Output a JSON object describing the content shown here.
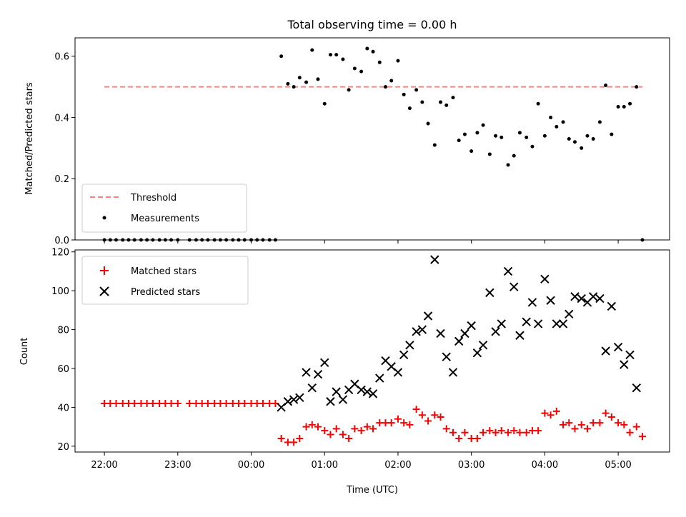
{
  "chart_data": {
    "type": "scatter",
    "title": "Total observing time = 0.00 h",
    "xlabel": "Time (UTC)",
    "x_ticks": [
      "22:00",
      "23:00",
      "00:00",
      "01:00",
      "02:00",
      "03:00",
      "04:00",
      "05:00"
    ],
    "x_tick_hours": [
      22.0,
      23.0,
      24.0,
      25.0,
      26.0,
      27.0,
      28.0,
      29.0
    ],
    "xlim": [
      21.6,
      29.7
    ],
    "time": [
      22.0,
      22.08,
      22.16,
      22.25,
      22.33,
      22.41,
      22.5,
      22.58,
      22.66,
      22.75,
      22.83,
      22.91,
      23.0,
      23.16,
      23.25,
      23.33,
      23.41,
      23.5,
      23.58,
      23.66,
      23.75,
      23.83,
      23.91,
      24.0,
      24.08,
      24.16,
      24.25,
      24.33,
      24.41,
      24.5,
      24.58,
      24.66,
      24.75,
      24.83,
      24.91,
      25.0,
      25.08,
      25.16,
      25.25,
      25.33,
      25.41,
      25.5,
      25.58,
      25.66,
      25.75,
      25.83,
      25.91,
      26.0,
      26.08,
      26.16,
      26.25,
      26.33,
      26.41,
      26.5,
      26.58,
      26.66,
      26.75,
      26.83,
      26.91,
      27.0,
      27.08,
      27.16,
      27.25,
      27.33,
      27.41,
      27.5,
      27.58,
      27.66,
      27.75,
      27.83,
      27.91,
      28.0,
      28.08,
      28.16,
      28.25,
      28.33,
      28.41,
      28.5,
      28.58,
      28.66,
      28.75,
      28.83,
      28.91,
      29.0,
      29.08,
      29.16,
      29.25,
      29.33
    ],
    "panels": [
      {
        "ylabel": "Matched/Predicted stars",
        "ylim": [
          0,
          0.66
        ],
        "y_ticks": [
          "0.0",
          "0.2",
          "0.4",
          "0.6"
        ],
        "y_tick_values": [
          0.0,
          0.2,
          0.4,
          0.6
        ],
        "legend_position": "lower-left",
        "series": [
          {
            "name": "Threshold",
            "style": "dashed-line",
            "color": "#ff7f7f",
            "x_range": [
              22.0,
              29.33
            ],
            "value": 0.5
          },
          {
            "name": "Measurements",
            "style": "dots",
            "color": "#000000",
            "values": [
              0,
              0,
              0,
              0,
              0,
              0,
              0,
              0,
              0,
              0,
              0,
              0,
              0,
              0,
              0,
              0,
              0,
              0,
              0,
              0,
              0,
              0,
              0,
              0,
              0,
              0,
              0,
              0,
              0.6,
              0.51,
              0.5,
              0.53,
              0.515,
              0.62,
              0.525,
              0.445,
              0.605,
              0.605,
              0.59,
              0.49,
              0.56,
              0.55,
              0.625,
              0.615,
              0.58,
              0.5,
              0.52,
              0.585,
              0.475,
              0.43,
              0.49,
              0.45,
              0.38,
              0.31,
              0.45,
              0.44,
              0.465,
              0.325,
              0.345,
              0.29,
              0.35,
              0.375,
              0.28,
              0.34,
              0.335,
              0.245,
              0.275,
              0.35,
              0.335,
              0.305,
              0.445,
              0.34,
              0.4,
              0.37,
              0.385,
              0.33,
              0.32,
              0.3,
              0.34,
              0.33,
              0.385,
              0.505,
              0.345,
              0.435,
              0.435,
              0.445,
              0.5,
              0.0
            ]
          }
        ]
      },
      {
        "ylabel": "Count",
        "ylim": [
          17,
          121
        ],
        "y_ticks": [
          "20",
          "40",
          "60",
          "80",
          "100",
          "120"
        ],
        "y_tick_values": [
          20,
          40,
          60,
          80,
          100,
          120
        ],
        "legend_position": "top-left",
        "series": [
          {
            "name": "Matched stars",
            "style": "plus",
            "color": "#ff0000",
            "values": [
              42,
              42,
              42,
              42,
              42,
              42,
              42,
              42,
              42,
              42,
              42,
              42,
              42,
              42,
              42,
              42,
              42,
              42,
              42,
              42,
              42,
              42,
              42,
              42,
              42,
              42,
              42,
              42,
              24,
              22,
              22,
              24,
              30,
              31,
              30,
              28,
              26,
              29,
              26,
              24,
              29,
              28,
              30,
              29,
              32,
              32,
              32,
              34,
              32,
              31,
              39,
              36,
              33,
              36,
              35,
              29,
              27,
              24,
              27,
              24,
              24,
              27,
              28,
              27,
              28,
              27,
              28,
              27,
              27,
              28,
              28,
              37,
              36,
              38,
              31,
              32,
              29,
              31,
              29,
              32,
              32,
              37,
              35,
              32,
              31,
              27,
              30,
              25
            ]
          },
          {
            "name": "Predicted stars",
            "style": "x",
            "color": "#000000",
            "values": [
              null,
              null,
              null,
              null,
              null,
              null,
              null,
              null,
              null,
              null,
              null,
              null,
              null,
              null,
              null,
              null,
              null,
              null,
              null,
              null,
              null,
              null,
              null,
              null,
              null,
              null,
              null,
              null,
              40,
              43,
              44,
              45,
              58,
              50,
              57,
              63,
              43,
              48,
              44,
              49,
              52,
              49,
              48,
              47,
              55,
              64,
              61,
              58,
              67,
              72,
              79,
              80,
              87,
              116,
              78,
              66,
              58,
              74,
              78,
              82,
              68,
              72,
              99,
              79,
              83,
              110,
              102,
              77,
              84,
              94,
              83,
              106,
              95,
              83,
              83,
              88,
              97,
              96,
              94,
              97,
              96,
              69,
              92,
              71,
              62,
              67,
              50
            ]
          }
        ]
      }
    ]
  }
}
